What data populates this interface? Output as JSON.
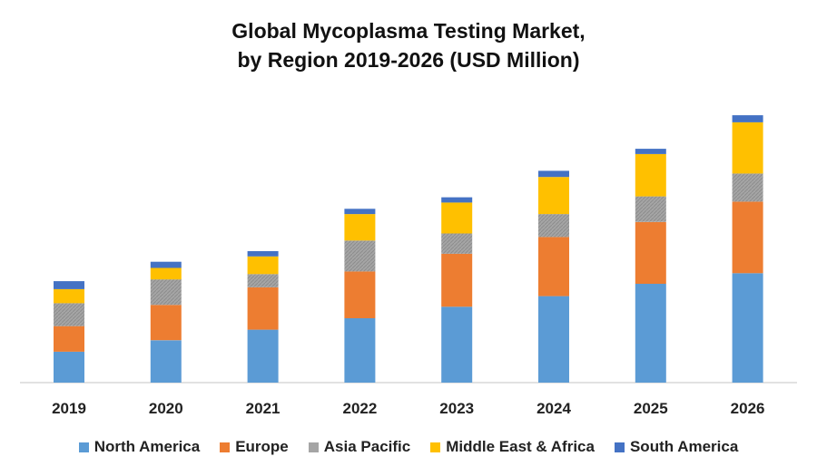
{
  "chart_data": {
    "type": "bar",
    "stacked": true,
    "title_line1": "Global Mycoplasma Testing Market,",
    "title_line2": "by Region 2019-2026 (USD Million)",
    "xlabel": "",
    "ylabel": "",
    "categories": [
      "2019",
      "2020",
      "2021",
      "2022",
      "2023",
      "2024",
      "2025",
      "2026"
    ],
    "ylim": [
      0,
      300
    ],
    "grid": false,
    "legend_position": "bottom",
    "series": [
      {
        "name": "North America",
        "color": "#5B9BD5",
        "pattern": "solid",
        "values": [
          35,
          48,
          60,
          73,
          86,
          98,
          112,
          124
        ]
      },
      {
        "name": "Europe",
        "color": "#ED7D31",
        "pattern": "solid",
        "values": [
          29,
          40,
          48,
          53,
          60,
          67,
          70,
          81
        ]
      },
      {
        "name": "Asia Pacific",
        "color": "#A5A5A5",
        "pattern": "hatch",
        "values": [
          26,
          29,
          15,
          35,
          23,
          26,
          29,
          32
        ]
      },
      {
        "name": "Middle East & Africa",
        "color": "#FFC000",
        "pattern": "solid",
        "values": [
          16,
          13,
          20,
          30,
          35,
          42,
          48,
          58
        ]
      },
      {
        "name": "South America",
        "color": "#4472C4",
        "pattern": "solid",
        "values": [
          9,
          7,
          6,
          6,
          6,
          7,
          6,
          8
        ]
      }
    ]
  }
}
